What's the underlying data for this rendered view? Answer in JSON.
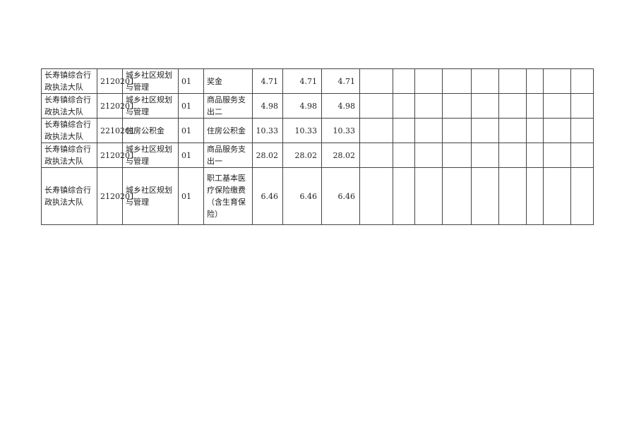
{
  "rows": [
    {
      "unit": "长寿镇综合行政执法大队",
      "code": "2120201",
      "category": "城乡社区规划与管理",
      "sub": "01",
      "item": "奖金",
      "v1": "4.71",
      "v2": "4.71",
      "v3": "4.71"
    },
    {
      "unit": "长寿镇综合行政执法大队",
      "code": "2120201",
      "category": "城乡社区规划与管理",
      "sub": "01",
      "item": "商品服务支出二",
      "v1": "4.98",
      "v2": "4.98",
      "v3": "4.98"
    },
    {
      "unit": "长寿镇综合行政执法大队",
      "code": "2210201",
      "category": "住房公积金",
      "sub": "01",
      "item": "住房公积金",
      "v1": "10.33",
      "v2": "10.33",
      "v3": "10.33"
    },
    {
      "unit": "长寿镇综合行政执法大队",
      "code": "2120201",
      "category": "城乡社区规划与管理",
      "sub": "01",
      "item": "商品服务支出一",
      "v1": "28.02",
      "v2": "28.02",
      "v3": "28.02"
    },
    {
      "unit": "长寿镇综合行政执法大队",
      "code": "2120201",
      "category": "城乡社区规划与管理",
      "sub": "01",
      "item": "职工基本医疗保险缴费（含生育保险）",
      "v1": "6.46",
      "v2": "6.46",
      "v3": "6.46"
    }
  ]
}
